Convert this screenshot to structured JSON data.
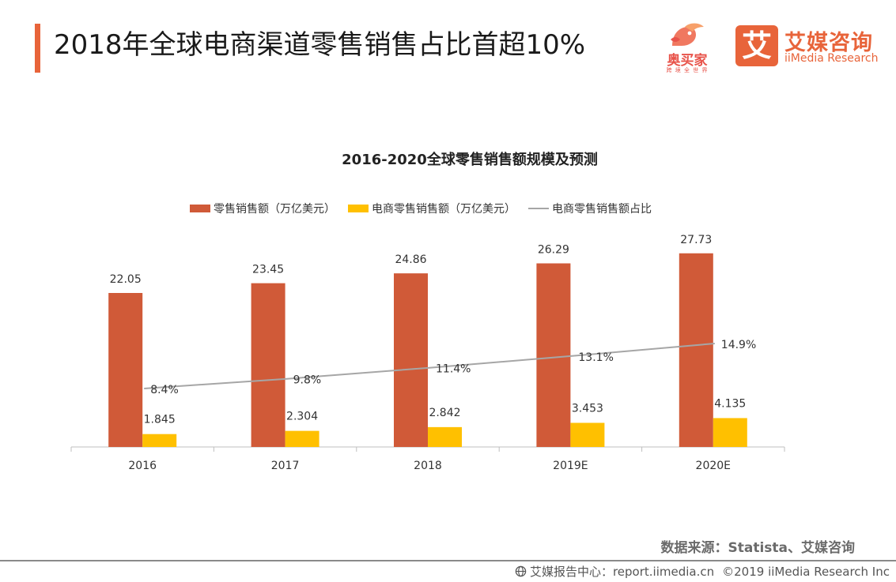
{
  "header": {
    "title": "2018年全球电商渠道零售销售占比首超10%",
    "accent_color": "#e8643a"
  },
  "logos": {
    "aomaijia": {
      "name": "奥买家",
      "tagline": "跨 境 全 世 界",
      "color": "#e8534a",
      "icon": "bird-logo-icon"
    },
    "iimedia": {
      "mark": "艾",
      "name_cn": "艾媒咨询",
      "name_en": "iiMedia Research",
      "color": "#e8643a"
    }
  },
  "chart_data": {
    "type": "bar",
    "title": "2016-2020全球零售销售额规模及预测",
    "categories": [
      "2016",
      "2017",
      "2018",
      "2019E",
      "2020E"
    ],
    "series": [
      {
        "name": "零售销售额（万亿美元）",
        "type": "bar",
        "color": "#d05a38",
        "values": [
          22.05,
          23.45,
          24.86,
          26.29,
          27.73
        ],
        "labels": [
          "22.05",
          "23.45",
          "24.86",
          "26.29",
          "27.73"
        ]
      },
      {
        "name": "电商零售销售额（万亿美元）",
        "type": "bar",
        "color": "#ffc000",
        "values": [
          1.845,
          2.304,
          2.842,
          3.453,
          4.135
        ],
        "labels": [
          "1.845",
          "2.304",
          "2.842",
          "3.453",
          "4.135"
        ]
      },
      {
        "name": "电商零售销售额占比",
        "type": "line",
        "color": "#a6a6a6",
        "values": [
          8.4,
          9.8,
          11.4,
          13.1,
          14.9
        ],
        "labels": [
          "8.4%",
          "9.8%",
          "11.4%",
          "13.1%",
          "14.9%"
        ]
      }
    ],
    "ylim": [
      0,
      30
    ],
    "ylim_secondary": [
      0,
      20
    ],
    "legend_position": "top-center",
    "grid": false
  },
  "footer": {
    "source": "数据来源：Statista、艾媒咨询",
    "report_center": "艾媒报告中心：report.iimedia.cn",
    "copyright": "©2019  iiMedia Research  Inc"
  }
}
